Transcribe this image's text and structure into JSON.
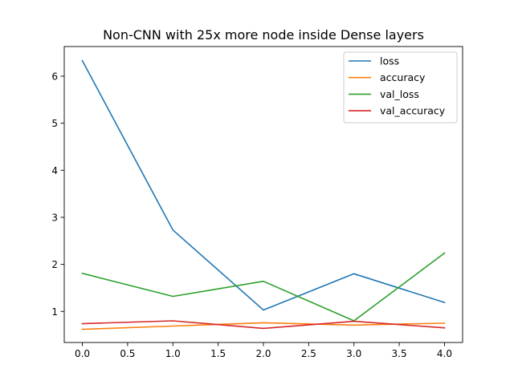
{
  "chart_data": {
    "type": "line",
    "title": "Non-CNN with 25x more node inside Dense layers",
    "xlabel": "",
    "ylabel": "",
    "x": [
      0,
      1,
      2,
      3,
      4
    ],
    "xlim": [
      -0.2,
      4.2
    ],
    "ylim": [
      0.34,
      6.63
    ],
    "xticks": [
      "0.0",
      "0.5",
      "1.0",
      "1.5",
      "2.0",
      "2.5",
      "3.0",
      "3.5",
      "4.0"
    ],
    "yticks": [
      "1",
      "2",
      "3",
      "4",
      "5",
      "6"
    ],
    "grid": false,
    "legend_position": "top-right",
    "series": [
      {
        "name": "loss",
        "color": "#1f77b4",
        "values": [
          6.33,
          2.73,
          1.03,
          1.8,
          1.19
        ]
      },
      {
        "name": "accuracy",
        "color": "#ff7f0e",
        "values": [
          0.62,
          0.69,
          0.76,
          0.71,
          0.75
        ]
      },
      {
        "name": "val_loss",
        "color": "#2ca02c",
        "values": [
          1.81,
          1.32,
          1.64,
          0.8,
          2.24
        ]
      },
      {
        "name": "val_accuracy",
        "color": "#d62728",
        "values": [
          0.74,
          0.8,
          0.64,
          0.79,
          0.65
        ]
      }
    ]
  }
}
